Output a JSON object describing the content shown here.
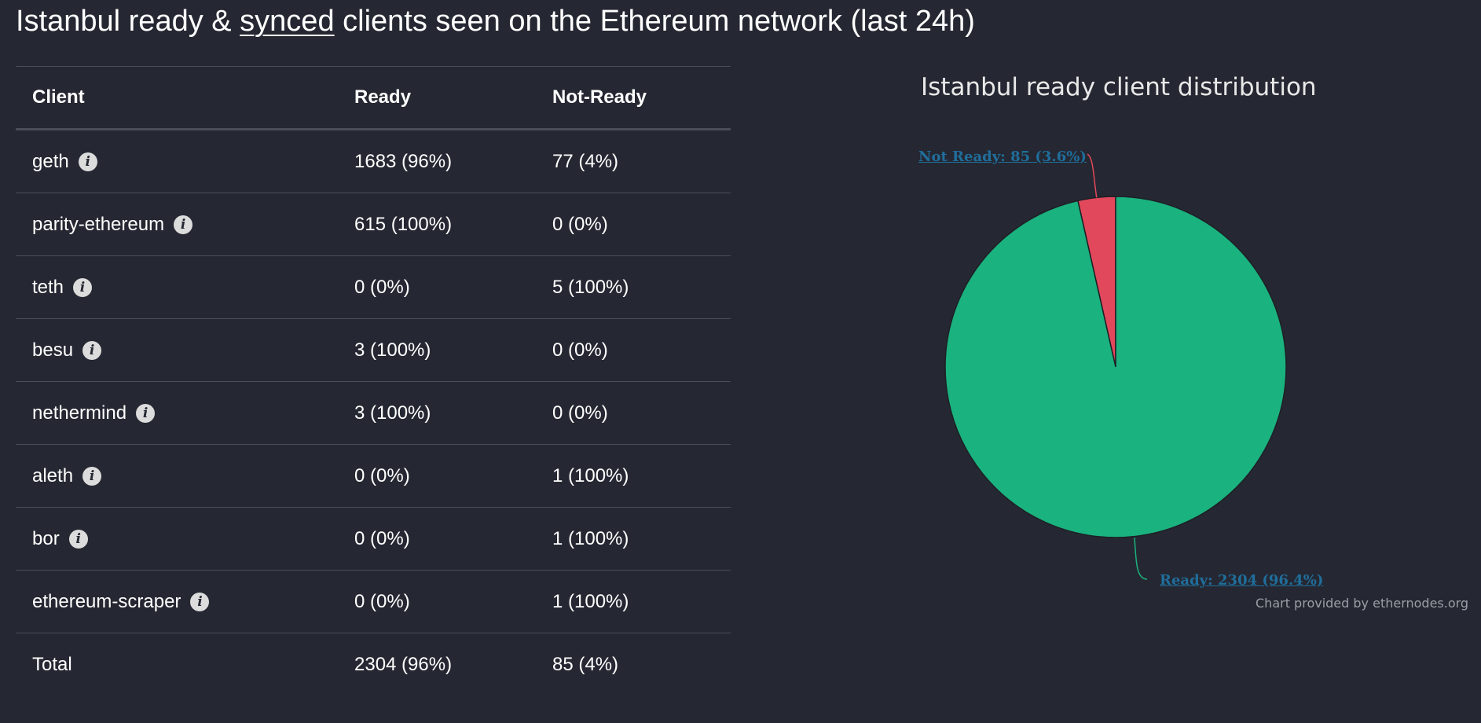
{
  "heading": {
    "prefix": "Istanbul ready & ",
    "link": "synced",
    "suffix": " clients seen on the Ethereum network (last 24h)"
  },
  "table": {
    "headers": {
      "client": "Client",
      "ready": "Ready",
      "not_ready": "Not-Ready"
    },
    "rows": [
      {
        "client": "geth",
        "ready": "1683 (96%)",
        "not_ready": "77 (4%)",
        "info_icon": "info-icon"
      },
      {
        "client": "parity-ethereum",
        "ready": "615 (100%)",
        "not_ready": "0 (0%)",
        "info_icon": "info-icon"
      },
      {
        "client": "teth",
        "ready": "0 (0%)",
        "not_ready": "5 (100%)",
        "info_icon": "info-icon"
      },
      {
        "client": "besu",
        "ready": "3 (100%)",
        "not_ready": "0 (0%)",
        "info_icon": "info-icon"
      },
      {
        "client": "nethermind",
        "ready": "3 (100%)",
        "not_ready": "0 (0%)",
        "info_icon": "info-icon"
      },
      {
        "client": "aleth",
        "ready": "0 (0%)",
        "not_ready": "1 (100%)",
        "info_icon": "info-icon"
      },
      {
        "client": "bor",
        "ready": "0 (0%)",
        "not_ready": "1 (100%)",
        "info_icon": "info-icon"
      },
      {
        "client": "ethereum-scraper",
        "ready": "0 (0%)",
        "not_ready": "1 (100%)",
        "info_icon": "info-icon"
      }
    ],
    "total": {
      "client": "Total",
      "ready": "2304 (96%)",
      "not_ready": "85 (4%)"
    }
  },
  "chart_data": {
    "type": "pie",
    "title": "Istanbul ready client distribution",
    "slices": [
      {
        "label": "Not Ready: 85 (3.6%)",
        "name": "Not Ready",
        "value": 85,
        "color": "#e2485b"
      },
      {
        "label": "Ready: 2304 (96.4%)",
        "name": "Ready",
        "value": 2304,
        "color": "#1ab27e"
      }
    ],
    "credit": "Chart provided by ethernodes.org"
  },
  "colors": {
    "background": "#252832",
    "ready": "#1ab27e",
    "not_ready": "#e2485b",
    "link": "#1f6e9c"
  }
}
